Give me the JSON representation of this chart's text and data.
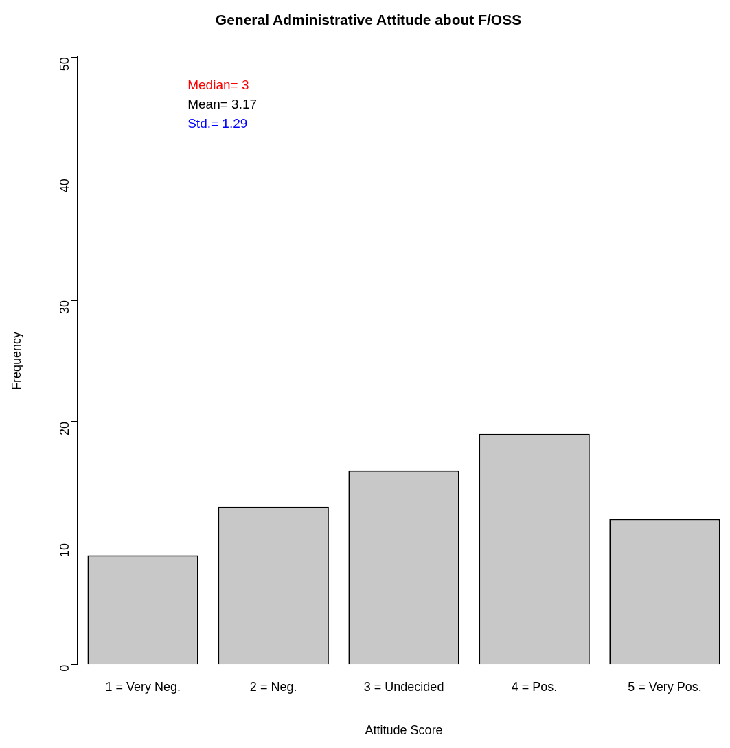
{
  "chart_data": {
    "type": "bar",
    "title": "General Administrative Attitude about F/OSS",
    "xlabel": "Attitude Score",
    "ylabel": "Frequency",
    "categories": [
      "1 = Very Neg.",
      "2 = Neg.",
      "3 = Undecided",
      "4 = Pos.",
      "5 = Very Pos."
    ],
    "values": [
      9,
      13,
      16,
      19,
      12
    ],
    "color": "#c8c8c8",
    "ylim": [
      0,
      50
    ],
    "yticks": [
      0,
      10,
      20,
      30,
      40,
      50
    ],
    "grid": false,
    "legend": false,
    "annotations": [
      "Median= 3",
      "Mean= 3.17",
      "Std.= 1.29"
    ]
  }
}
